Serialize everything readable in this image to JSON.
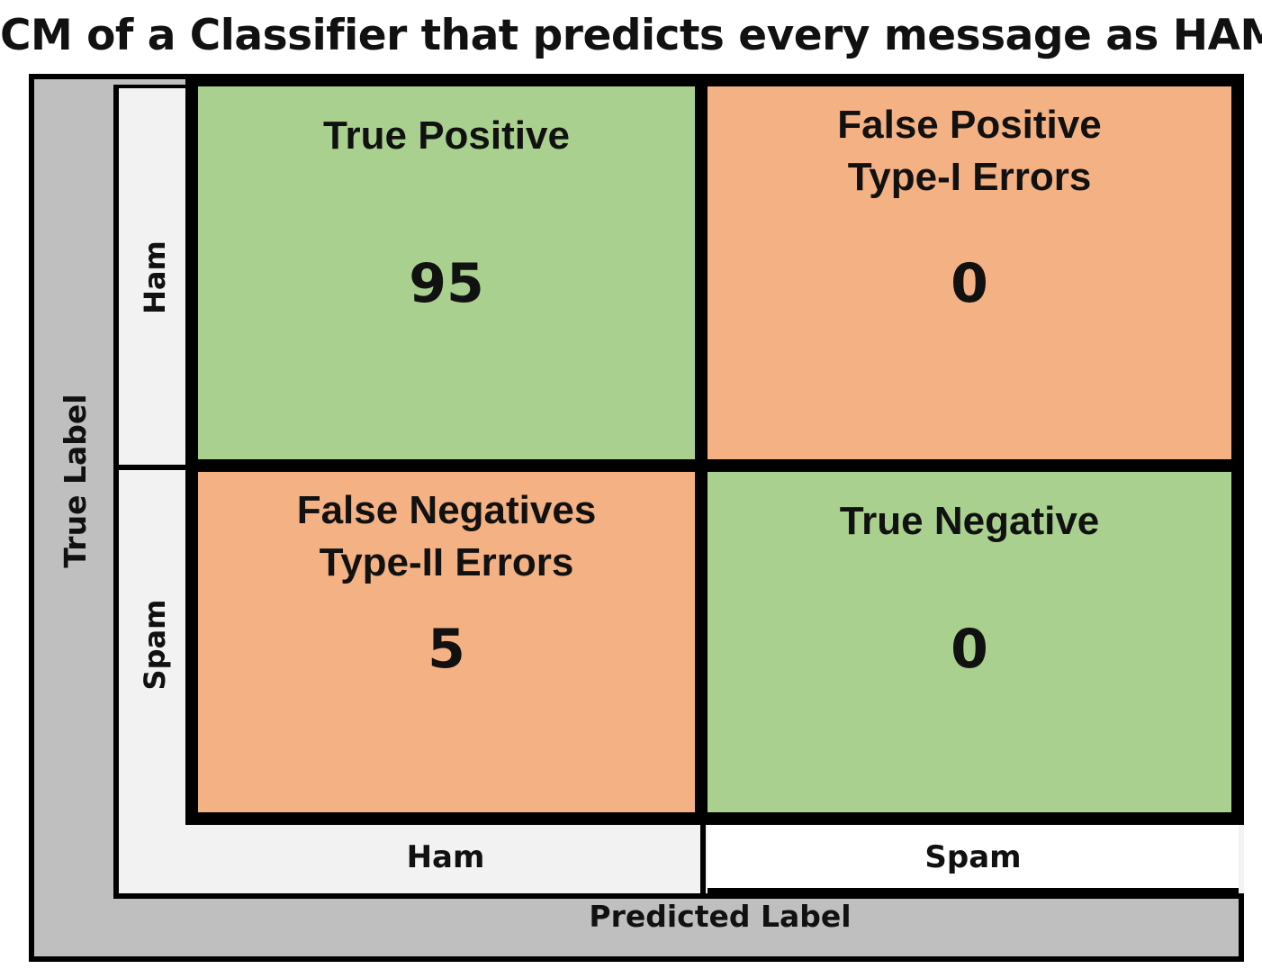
{
  "title": "CM of a Classifier that predicts every message as HAM",
  "axes": {
    "y_label": "True Label",
    "x_label": "Predicted Label"
  },
  "rows": [
    "Ham",
    "Spam"
  ],
  "columns": [
    "Ham",
    "Spam"
  ],
  "cells": [
    {
      "title": "True Positive",
      "subtitle": "",
      "value": "95",
      "color": "#a9d08e"
    },
    {
      "title": "False Positive",
      "subtitle": "Type-I Errors",
      "value": "0",
      "color": "#f4b183"
    },
    {
      "title": "False Negatives",
      "subtitle": "Type-II Errors",
      "value": "5",
      "color": "#f4b183"
    },
    {
      "title": "True Negative",
      "subtitle": "",
      "value": "0",
      "color": "#a9d08e"
    }
  ]
}
